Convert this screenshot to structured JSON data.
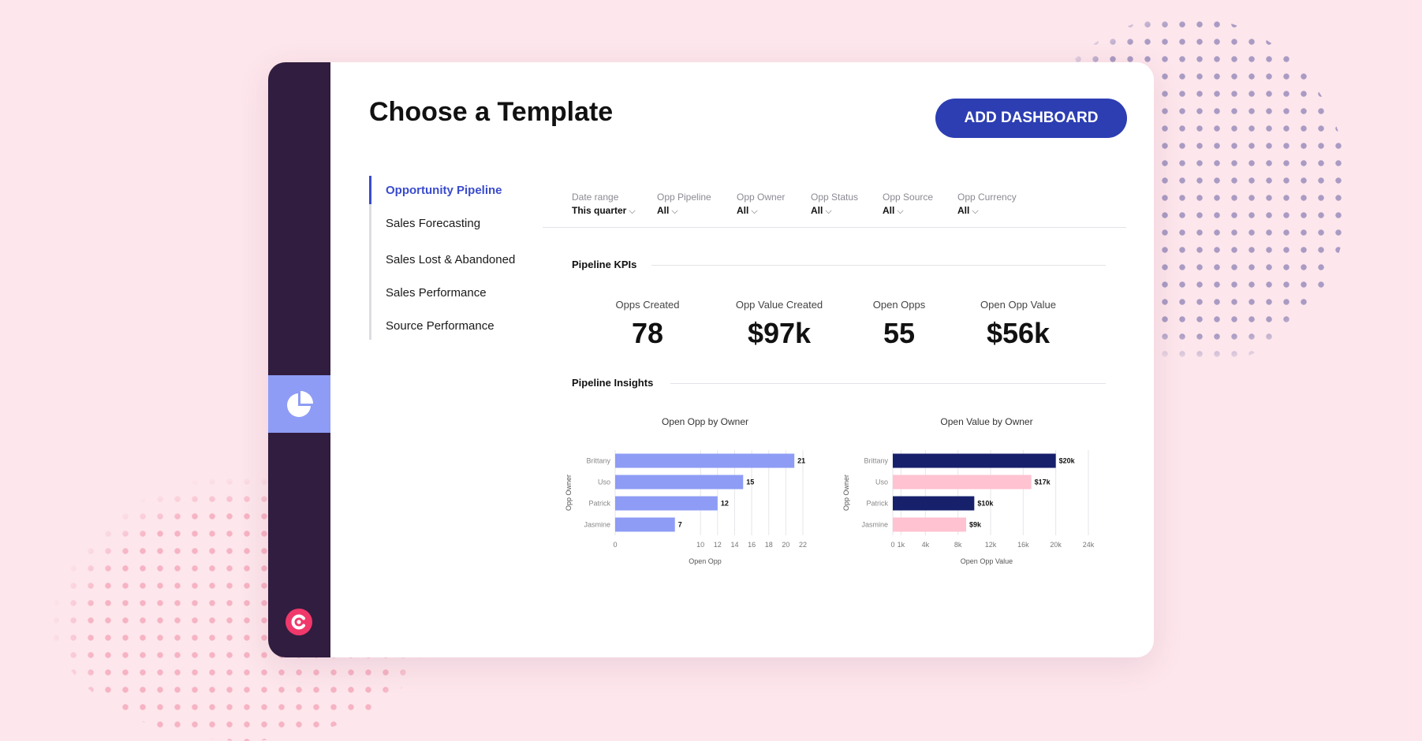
{
  "colors": {
    "background": "#fde6ec",
    "rail": "#311d3f",
    "rail_active": "#8e9cf5",
    "primary_button": "#2d3eb2",
    "active_nav": "#3a4bcc",
    "brand_mark": "#f0386b",
    "bar_periwinkle": "#8e9cf5",
    "bar_navy": "#17206b",
    "bar_pink": "#ffc2d1"
  },
  "rail": {
    "active_icon": "pie-chart-icon",
    "brand_icon": "brand-logo-icon"
  },
  "header": {
    "title": "Choose a Template",
    "add_button_label": "ADD DASHBOARD"
  },
  "templates": [
    {
      "label": "Opportunity Pipeline",
      "active": true
    },
    {
      "label": "Sales Forecasting",
      "active": false
    },
    {
      "label": "Sales Lost & Abandoned",
      "active": false
    },
    {
      "label": "Sales Performance",
      "active": false
    },
    {
      "label": "Source Performance",
      "active": false
    }
  ],
  "filters": [
    {
      "label": "Date range",
      "value": "This quarter"
    },
    {
      "label": "Opp Pipeline",
      "value": "All"
    },
    {
      "label": "Opp Owner",
      "value": "All"
    },
    {
      "label": "Opp Status",
      "value": "All"
    },
    {
      "label": "Opp Source",
      "value": "All"
    },
    {
      "label": "Opp Currency",
      "value": "All"
    }
  ],
  "kpi_section_title": "Pipeline KPIs",
  "kpis": [
    {
      "label": "Opps Created",
      "value": "78"
    },
    {
      "label": "Opp Value Created",
      "value": "$97k"
    },
    {
      "label": "Open Opps",
      "value": "55"
    },
    {
      "label": "Open Opp Value",
      "value": "$56k"
    }
  ],
  "insights_section_title": "Pipeline Insights",
  "chart_data": [
    {
      "type": "bar",
      "orientation": "horizontal",
      "title": "Open Opp by Owner",
      "xlabel": "Open Opp",
      "ylabel": "Opp Owner",
      "categories": [
        "Brittany",
        "Uso",
        "Patrick",
        "Jasmine"
      ],
      "values": [
        21,
        15,
        12,
        7
      ],
      "data_labels": [
        "21",
        "15",
        "12",
        "7"
      ],
      "bar_colors": [
        "#8e9cf5",
        "#8e9cf5",
        "#8e9cf5",
        "#8e9cf5"
      ],
      "xlim": [
        0,
        22
      ],
      "xticks": [
        0,
        10,
        12,
        14,
        16,
        18,
        20,
        22
      ],
      "xtick_labels": [
        "0",
        "10",
        "12",
        "14",
        "16",
        "18",
        "20",
        "22"
      ],
      "grid": true
    },
    {
      "type": "bar",
      "orientation": "horizontal",
      "title": "Open Value by Owner",
      "xlabel": "Open Opp Value",
      "ylabel": "Opp Owner",
      "categories": [
        "Brittany",
        "Uso",
        "Patrick",
        "Jasmine"
      ],
      "values": [
        20000,
        17000,
        10000,
        9000
      ],
      "data_labels": [
        "$20k",
        "$17k",
        "$10k",
        "$9k"
      ],
      "bar_colors": [
        "#17206b",
        "#ffc2d1",
        "#17206b",
        "#ffc2d1"
      ],
      "xlim": [
        0,
        24000
      ],
      "xticks": [
        0,
        1000,
        4000,
        8000,
        12000,
        16000,
        20000,
        24000
      ],
      "xtick_labels": [
        "0",
        "1k",
        "4k",
        "8k",
        "12k",
        "16k",
        "20k",
        "24k"
      ],
      "grid": true
    }
  ]
}
